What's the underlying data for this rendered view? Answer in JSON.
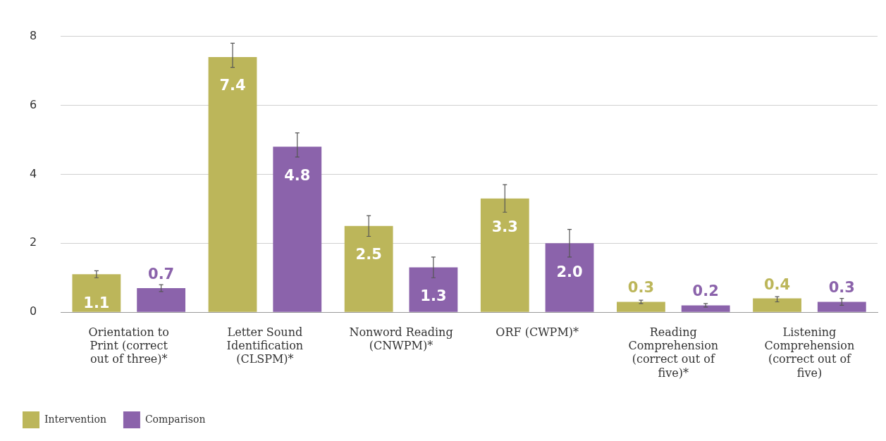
{
  "chart_data": {
    "type": "bar",
    "categories": [
      "Orientation to Print (correct out of three)*",
      "Letter Sound Identification (CLSPM)*",
      "Nonword Reading (CNWPM)*",
      "ORF (CWPM)*",
      "Reading Comprehension (correct out of five)*",
      "Listening Comprehension (correct out of five)"
    ],
    "series": [
      {
        "name": "Intervention",
        "color": "#bcb65a",
        "values": [
          1.1,
          7.4,
          2.5,
          3.3,
          0.3,
          0.4
        ],
        "value_labels": [
          "1.1",
          "7.4",
          "2.5",
          "3.3",
          "0.3",
          "0.4"
        ],
        "errors": [
          [
            1.0,
            1.2
          ],
          [
            7.1,
            7.8
          ],
          [
            2.2,
            2.8
          ],
          [
            2.9,
            3.7
          ],
          [
            0.25,
            0.35
          ],
          [
            0.3,
            0.45
          ]
        ]
      },
      {
        "name": "Comparison",
        "color": "#8b63ab",
        "values": [
          0.7,
          4.8,
          1.3,
          2.0,
          0.2,
          0.3
        ],
        "value_labels": [
          "0.7",
          "4.8",
          "1.3",
          "2.0",
          "0.2",
          "0.3"
        ],
        "errors": [
          [
            0.6,
            0.8
          ],
          [
            4.5,
            5.2
          ],
          [
            1.0,
            1.6
          ],
          [
            1.6,
            2.4
          ],
          [
            0.15,
            0.25
          ],
          [
            0.2,
            0.4
          ]
        ]
      }
    ],
    "ylim": [
      0,
      8
    ],
    "yticks": [
      0,
      2,
      4,
      6,
      8
    ],
    "grid": "y",
    "legend": "bottom left"
  }
}
